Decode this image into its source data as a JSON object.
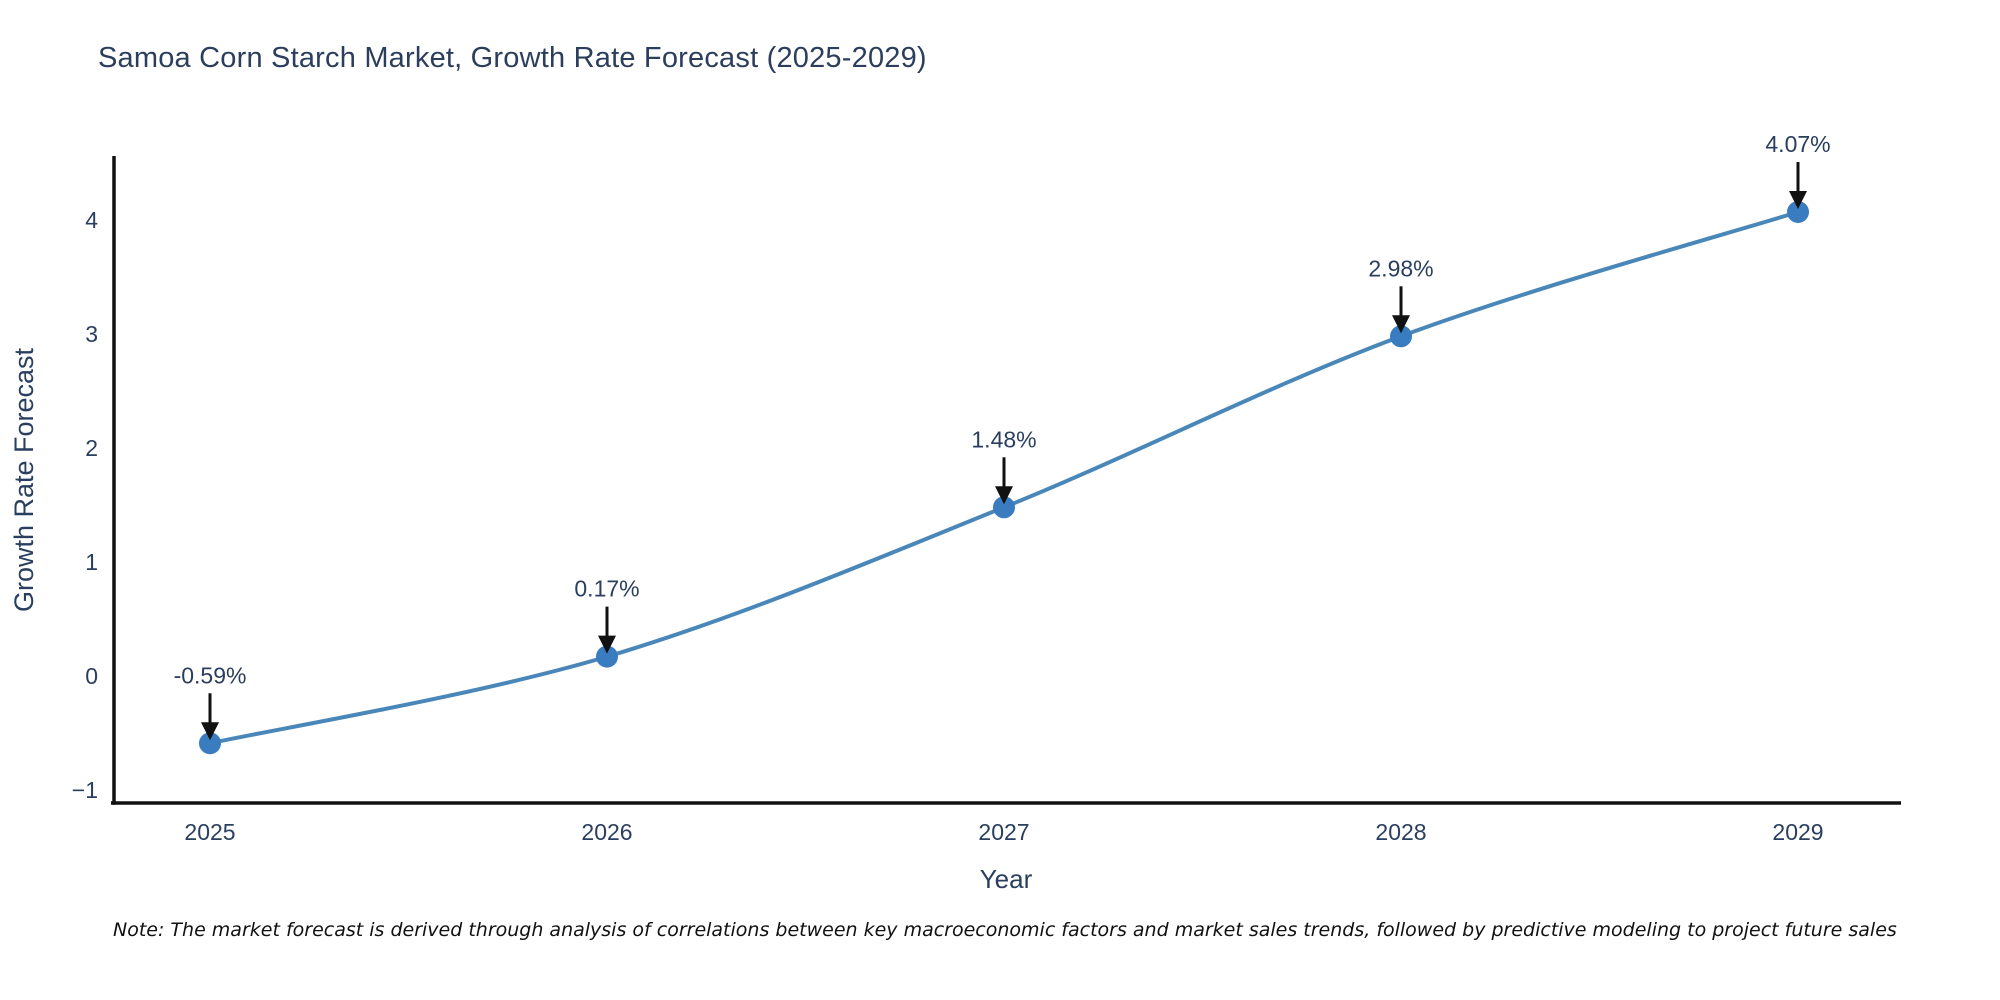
{
  "header": {
    "title": "Samoa Corn Starch Market, Growth Rate Forecast (2025-2029)"
  },
  "footer": {
    "note": "Note: The market forecast is derived through analysis of correlations between key macroeconomic factors and market sales trends, followed by predictive modeling to project future sales"
  },
  "chart_data": {
    "type": "line",
    "title": "Samoa Corn Starch Market, Growth Rate Forecast (2025-2029)",
    "x": [
      "2025",
      "2026",
      "2027",
      "2028",
      "2029"
    ],
    "series": [
      {
        "name": "Growth Rate Forecast",
        "values": [
          -0.59,
          0.17,
          1.48,
          2.98,
          4.07
        ],
        "labels": [
          "-0.59%",
          "0.17%",
          "1.48%",
          "2.98%",
          "4.07%"
        ]
      }
    ],
    "xlabel": "Year",
    "ylabel": "Growth Rate Forecast",
    "ytick_values": [
      4,
      3,
      2,
      1,
      0,
      -1
    ],
    "ytick_labels": [
      "4",
      "3",
      "2",
      "1",
      "0",
      "−1"
    ],
    "ylim": [
      -1.12,
      4.54
    ],
    "grid": false,
    "legend_position": "none",
    "line_shape": "spline",
    "marker": "circle",
    "annotation_arrows": true,
    "colors": {
      "line": "#4a87b9",
      "marker": "#3a7cc0",
      "annotation_text": "#2a3f5f",
      "arrow": "#111111",
      "axis": "#111111",
      "tick_text": "#2a3f5f",
      "title_text": "#2c3e5d",
      "note_text": "#111111"
    }
  }
}
